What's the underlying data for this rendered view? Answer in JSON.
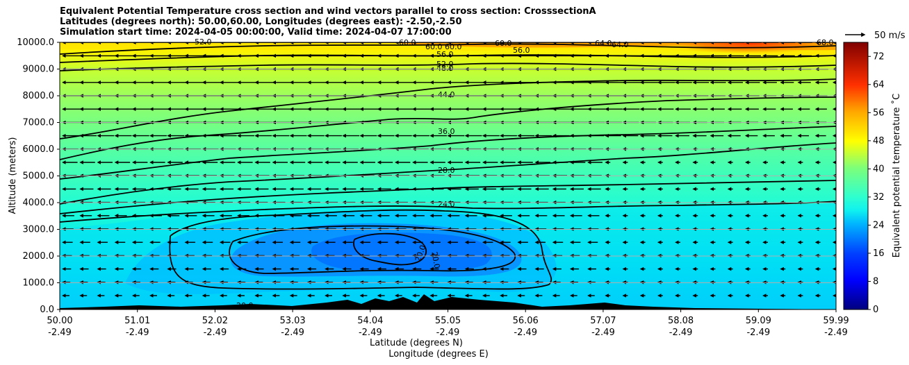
{
  "titles": {
    "line1": "Equivalent Potential Temperature cross section and wind vectors parallel to cross section: CrosssectionA",
    "line2": "Latitudes (degrees north): 50.00,60.00, Longitudes (degrees east): -2.50,-2.50",
    "line3": "Simulation start time: 2024-04-05 00:00:00, Valid time: 2024-04-07 17:00:00"
  },
  "chart_data": {
    "type": "contour-cross-section",
    "ylabel": "Altitude (meters)",
    "xlabel_lat": "Latitude (degrees N)",
    "xlabel_lon": "Longitude (degrees E)",
    "ylim": [
      0,
      10000
    ],
    "yticks": [
      "0.0",
      "1000.0",
      "2000.0",
      "3000.0",
      "4000.0",
      "5000.0",
      "6000.0",
      "7000.0",
      "8000.0",
      "9000.0",
      "10000.0"
    ],
    "xticks_lat": [
      "50.00",
      "51.01",
      "52.02",
      "53.03",
      "54.04",
      "55.05",
      "56.06",
      "57.07",
      "58.08",
      "59.09",
      "59.99"
    ],
    "xticks_lon": [
      "-2.49",
      "-2.49",
      "-2.49",
      "-2.49",
      "-2.49",
      "-2.49",
      "-2.49",
      "-2.49",
      "-2.49",
      "-2.49",
      "-2.49"
    ],
    "grid": "horizontal",
    "colorbar": {
      "label": "Equivalent potential temperature ˚C",
      "range": [
        0,
        76
      ],
      "ticks": [
        "0",
        "8",
        "16",
        "24",
        "32",
        "40",
        "48",
        "56",
        "64",
        "72"
      ],
      "colormap": "jet"
    },
    "contour_labels": [
      "20.0",
      "20.0",
      "20.0",
      "24.0",
      "28.0",
      "36.0",
      "44.0",
      "48.0",
      "52.0",
      "52.0",
      "56.0",
      "56.0",
      "60.0",
      "60.0",
      "60.0",
      "60.0",
      "64.0",
      "64.0",
      "68.0"
    ],
    "wind_key": "50 m/s"
  }
}
